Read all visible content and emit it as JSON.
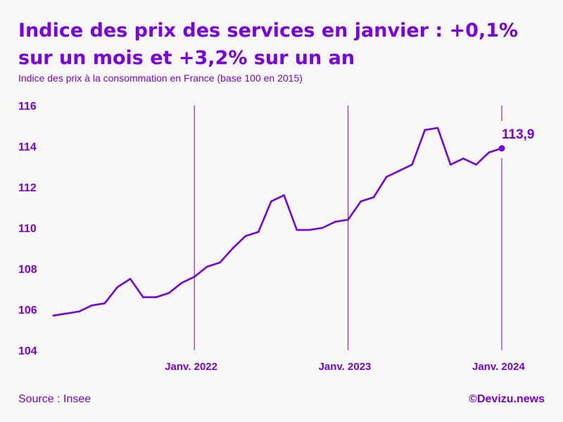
{
  "header": {
    "title": "Indice des prix des services en janvier : +0,1% sur un mois et +3,2% sur un an",
    "subtitle": "Indice des prix à la consommation en France (base 100 en 2015)"
  },
  "footer": {
    "source": "Source : Insee",
    "credit": "©Devizu.news"
  },
  "colors": {
    "accent": "#7a00e6",
    "background": "#f8f8f9"
  },
  "chart_data": {
    "type": "line",
    "title": "Indice des prix des services en janvier : +0,1% sur un mois et +3,2% sur un an",
    "subtitle": "Indice des prix à la consommation en France (base 100 en 2015)",
    "xlabel": "",
    "ylabel": "",
    "ylim": [
      104,
      116
    ],
    "yticks": [
      104,
      106,
      108,
      110,
      112,
      114,
      116
    ],
    "grid": false,
    "x_range_months": [
      0,
      35
    ],
    "month_start": "2021-02",
    "xtick_labels": [
      {
        "month_index": 11,
        "label": "Janv. 2022"
      },
      {
        "month_index": 23,
        "label": "Janv. 2023"
      },
      {
        "month_index": 35,
        "label": "Janv. 2024"
      }
    ],
    "series": [
      {
        "name": "Indice des prix des services",
        "values": [
          105.7,
          105.8,
          105.9,
          106.2,
          106.3,
          107.1,
          107.5,
          106.6,
          106.6,
          106.8,
          107.3,
          107.6,
          108.1,
          108.3,
          109.0,
          109.6,
          109.8,
          111.3,
          111.6,
          109.9,
          109.9,
          110.0,
          110.3,
          110.4,
          111.3,
          111.5,
          112.5,
          112.8,
          113.1,
          114.8,
          114.9,
          113.1,
          113.4,
          113.1,
          113.7,
          113.9
        ]
      }
    ],
    "annotations": [
      {
        "month_index": 35,
        "value": 113.9,
        "label": "113,9"
      }
    ]
  }
}
